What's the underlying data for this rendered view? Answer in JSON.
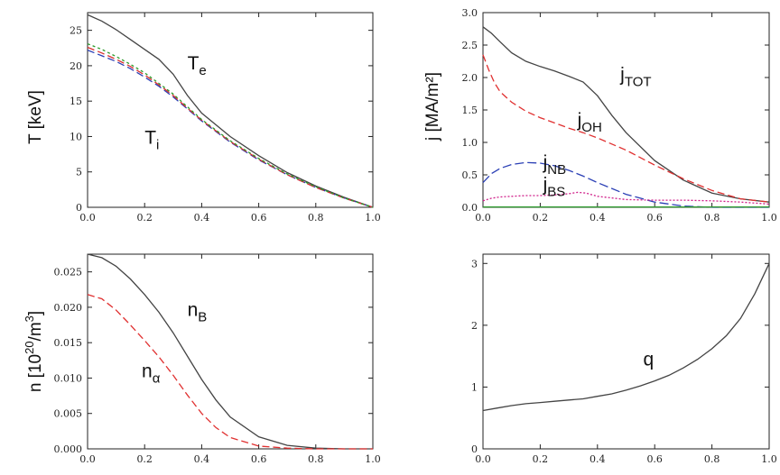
{
  "chart_data": [
    {
      "type": "line",
      "ylabel": "T [keV]",
      "xlim": [
        0,
        1
      ],
      "ylim": [
        0,
        27.5
      ],
      "xticks": [
        "0.0",
        "0.2",
        "0.4",
        "0.6",
        "0.8",
        "1.0"
      ],
      "yticks": [
        "0",
        "5",
        "10",
        "15",
        "20",
        "25"
      ],
      "series": [
        {
          "name": "Te",
          "color": "#444444",
          "dash": "none",
          "x": [
            0,
            0.05,
            0.1,
            0.15,
            0.2,
            0.25,
            0.3,
            0.35,
            0.4,
            0.5,
            0.6,
            0.7,
            0.8,
            0.9,
            1.0
          ],
          "y": [
            27.2,
            26.3,
            25.1,
            23.7,
            22.3,
            20.9,
            18.8,
            15.8,
            13.3,
            10.0,
            7.3,
            4.9,
            3.0,
            1.4,
            0.0
          ]
        },
        {
          "name": "Ti",
          "color": "#2a3fb5",
          "dash": "8,4",
          "x": [
            0,
            0.05,
            0.1,
            0.15,
            0.2,
            0.25,
            0.3,
            0.35,
            0.4,
            0.5,
            0.6,
            0.7,
            0.8,
            0.9,
            1.0
          ],
          "y": [
            22.2,
            21.4,
            20.6,
            19.6,
            18.4,
            17.1,
            15.6,
            13.9,
            12.2,
            9.2,
            6.7,
            4.6,
            2.8,
            1.3,
            0.0
          ]
        },
        {
          "name": "",
          "color": "#d93030",
          "dash": "8,4",
          "x": [
            0,
            0.05,
            0.1,
            0.15,
            0.2,
            0.25,
            0.3,
            0.35,
            0.4,
            0.5,
            0.6,
            0.7,
            0.8,
            0.9,
            1.0
          ],
          "y": [
            22.6,
            21.8,
            20.9,
            19.9,
            18.7,
            17.3,
            15.8,
            14.0,
            12.3,
            9.3,
            6.8,
            4.6,
            2.8,
            1.3,
            0.0
          ]
        },
        {
          "name": "",
          "color": "#2a9a2a",
          "dash": "3,3",
          "x": [
            0,
            0.05,
            0.1,
            0.15,
            0.2,
            0.25,
            0.3,
            0.35,
            0.4,
            0.5,
            0.6,
            0.7,
            0.8,
            0.9,
            1.0
          ],
          "y": [
            23.1,
            22.3,
            21.3,
            20.2,
            19.0,
            17.5,
            16.0,
            14.2,
            12.4,
            9.4,
            6.9,
            4.7,
            2.9,
            1.3,
            0.0
          ]
        }
      ],
      "annotations": [
        {
          "main": "T",
          "sub": "e",
          "x": 0.35,
          "y": 19.5
        },
        {
          "main": "T",
          "sub": "i",
          "x": 0.2,
          "y": 9.0
        }
      ]
    },
    {
      "type": "line",
      "ylabel": "j [MA/m²]",
      "xlim": [
        0,
        1
      ],
      "ylim": [
        0,
        3.0
      ],
      "xticks": [
        "0.0",
        "0.2",
        "0.4",
        "0.6",
        "0.8",
        "1.0"
      ],
      "yticks": [
        "0.0",
        "0.5",
        "1.0",
        "1.5",
        "2.0",
        "2.5",
        "3.0"
      ],
      "series": [
        {
          "name": "jTOT",
          "color": "#444444",
          "dash": "none",
          "x": [
            0,
            0.03,
            0.06,
            0.1,
            0.15,
            0.2,
            0.25,
            0.3,
            0.35,
            0.4,
            0.45,
            0.5,
            0.6,
            0.7,
            0.8,
            0.9,
            1.0
          ],
          "y": [
            2.78,
            2.68,
            2.55,
            2.38,
            2.25,
            2.17,
            2.1,
            2.02,
            1.93,
            1.72,
            1.42,
            1.15,
            0.72,
            0.42,
            0.22,
            0.13,
            0.08
          ]
        },
        {
          "name": "jOH",
          "color": "#e03030",
          "dash": "8,4",
          "x": [
            0,
            0.02,
            0.04,
            0.06,
            0.1,
            0.15,
            0.2,
            0.25,
            0.3,
            0.35,
            0.4,
            0.5,
            0.6,
            0.7,
            0.8,
            0.9,
            1.0
          ],
          "y": [
            2.35,
            2.12,
            1.92,
            1.78,
            1.62,
            1.48,
            1.38,
            1.3,
            1.22,
            1.15,
            1.07,
            0.88,
            0.65,
            0.44,
            0.26,
            0.13,
            0.08
          ]
        },
        {
          "name": "jNB",
          "color": "#2a3fb5",
          "dash": "10,4",
          "x": [
            0,
            0.03,
            0.06,
            0.1,
            0.15,
            0.2,
            0.25,
            0.3,
            0.35,
            0.4,
            0.5,
            0.6,
            0.7,
            0.8,
            0.9,
            1.0
          ],
          "y": [
            0.38,
            0.52,
            0.6,
            0.66,
            0.69,
            0.68,
            0.64,
            0.57,
            0.48,
            0.38,
            0.2,
            0.08,
            0.02,
            0.0,
            0.0,
            0.0
          ]
        },
        {
          "name": "jBS",
          "color": "#d0208a",
          "dash": "2,2",
          "x": [
            0,
            0.03,
            0.06,
            0.1,
            0.15,
            0.2,
            0.25,
            0.3,
            0.33,
            0.36,
            0.4,
            0.5,
            0.6,
            0.7,
            0.8,
            0.9,
            1.0
          ],
          "y": [
            0.1,
            0.14,
            0.16,
            0.17,
            0.18,
            0.18,
            0.19,
            0.21,
            0.23,
            0.22,
            0.17,
            0.12,
            0.11,
            0.11,
            0.1,
            0.08,
            0.05
          ]
        },
        {
          "name": "",
          "color": "#2a9a2a",
          "dash": "none",
          "x": [
            0,
            1.0
          ],
          "y": [
            0.005,
            0.005
          ]
        }
      ],
      "annotations": [
        {
          "main": "j",
          "sub": "TOT",
          "x": 0.48,
          "y": 1.95
        },
        {
          "main": "j",
          "sub": "OH",
          "x": 0.33,
          "y": 1.25
        },
        {
          "main": "j",
          "sub": "NB",
          "x": 0.21,
          "y": 0.6
        },
        {
          "main": "j",
          "sub": "BS",
          "x": 0.21,
          "y": 0.26
        }
      ]
    },
    {
      "type": "line",
      "ylabel_main": "n [10",
      "ylabel_sup": "20",
      "ylabel_end": "/m",
      "ylabel_sup2": "3",
      "ylabel_close": "]",
      "xlim": [
        0,
        1
      ],
      "ylim": [
        0,
        0.0275
      ],
      "xticks": [
        "0.0",
        "0.2",
        "0.4",
        "0.6",
        "0.8",
        "1.0"
      ],
      "yticks": [
        "0.000",
        "0.005",
        "0.010",
        "0.015",
        "0.020",
        "0.025"
      ],
      "series": [
        {
          "name": "nB",
          "color": "#444444",
          "dash": "none",
          "x": [
            0,
            0.05,
            0.1,
            0.15,
            0.2,
            0.25,
            0.3,
            0.35,
            0.4,
            0.45,
            0.5,
            0.6,
            0.7,
            0.8,
            0.9,
            1.0
          ],
          "y": [
            0.0275,
            0.027,
            0.0258,
            0.024,
            0.0218,
            0.0193,
            0.0164,
            0.0131,
            0.0098,
            0.0069,
            0.0045,
            0.0017,
            0.0005,
            0.0001,
            0.0,
            0.0
          ]
        },
        {
          "name": "nα",
          "color": "#e03030",
          "dash": "8,4",
          "x": [
            0,
            0.05,
            0.1,
            0.15,
            0.2,
            0.25,
            0.3,
            0.35,
            0.4,
            0.45,
            0.5,
            0.6,
            0.7,
            0.8,
            0.9,
            1.0
          ],
          "y": [
            0.0218,
            0.0212,
            0.0196,
            0.0175,
            0.0153,
            0.013,
            0.0104,
            0.0076,
            0.005,
            0.003,
            0.0016,
            0.0004,
            0.0001,
            0.0,
            0.0,
            0.0
          ]
        }
      ],
      "annotations": [
        {
          "main": "n",
          "sub": "B",
          "x": 0.35,
          "y": 0.0188
        },
        {
          "main": "n",
          "sub": "α",
          "x": 0.19,
          "y": 0.0101
        }
      ]
    },
    {
      "type": "line",
      "ylabel": "",
      "xlim": [
        0,
        1
      ],
      "ylim": [
        0,
        3.15
      ],
      "xticks": [
        "0.0",
        "0.2",
        "0.4",
        "0.6",
        "0.8",
        "1.0"
      ],
      "yticks": [
        "0",
        "1",
        "2",
        "3"
      ],
      "series": [
        {
          "name": "q",
          "color": "#444444",
          "dash": "none",
          "x": [
            0,
            0.05,
            0.1,
            0.15,
            0.2,
            0.25,
            0.3,
            0.35,
            0.4,
            0.45,
            0.5,
            0.55,
            0.6,
            0.65,
            0.7,
            0.75,
            0.8,
            0.85,
            0.9,
            0.95,
            1.0
          ],
          "y": [
            0.62,
            0.66,
            0.7,
            0.73,
            0.75,
            0.77,
            0.79,
            0.81,
            0.85,
            0.89,
            0.95,
            1.02,
            1.1,
            1.19,
            1.31,
            1.45,
            1.62,
            1.83,
            2.11,
            2.51,
            3.0
          ]
        }
      ],
      "annotations": [
        {
          "main": "q",
          "sub": "",
          "x": 0.56,
          "y": 1.35
        }
      ]
    }
  ]
}
